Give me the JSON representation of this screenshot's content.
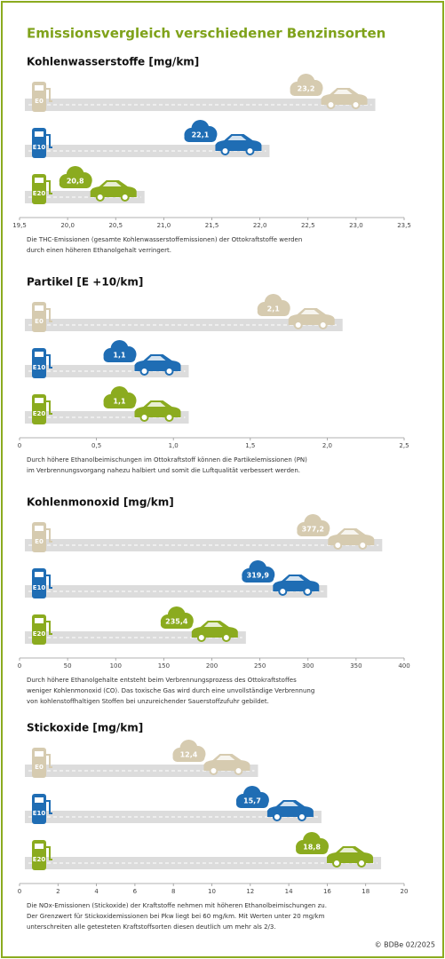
{
  "title": "Emissionsvergleich verschiedener Benzinsorten",
  "credit": "© BDBe 02/2025",
  "chart_data": [
    {
      "type": "bar",
      "title": "Kohlenwasserstoffe [mg/km]",
      "categories": [
        "E0",
        "E10",
        "E20"
      ],
      "values": [
        23.2,
        22.1,
        20.8
      ],
      "value_labels": [
        "23,2",
        "22,1",
        "20,8"
      ],
      "colors": [
        "#d6cbb0",
        "#1f6db4",
        "#8bab1f"
      ],
      "xlim": [
        19.5,
        23.5
      ],
      "xticks": [
        {
          "value": 19.5,
          "label": "19,5"
        },
        {
          "value": 20,
          "label": "20,0"
        },
        {
          "value": 20.5,
          "label": "20,5"
        },
        {
          "value": 21,
          "label": "21,0"
        },
        {
          "value": 21.5,
          "label": "21,5"
        },
        {
          "value": 22,
          "label": "22,0"
        },
        {
          "value": 22.5,
          "label": "22,5"
        },
        {
          "value": 23,
          "label": "23,0"
        },
        {
          "value": 23.5,
          "label": "23,5"
        }
      ],
      "caption": [
        "Die THC-Emissionen (gesamte Kohlenwasserstoffemissionen) der Ottokraftstoffe werden",
        "durch einen höheren Ethanolgehalt verringert."
      ]
    },
    {
      "type": "bar",
      "title": "Partikel [E +10/km]",
      "categories": [
        "E0",
        "E10",
        "E20"
      ],
      "values": [
        2.1,
        1.1,
        1.1
      ],
      "value_labels": [
        "2,1",
        "1,1",
        "1,1"
      ],
      "colors": [
        "#d6cbb0",
        "#1f6db4",
        "#8bab1f"
      ],
      "xlim": [
        0,
        2.5
      ],
      "xticks": [
        0,
        {
          "value": 0.5,
          "label": "0,5"
        },
        {
          "value": 1,
          "label": "1,0"
        },
        {
          "value": 1.5,
          "label": "1,5"
        },
        {
          "value": 2,
          "label": "2,0"
        },
        {
          "value": 2.5,
          "label": "2,5"
        }
      ],
      "caption": [
        "Durch höhere Ethanolbeimischungen im Ottokraftstoff können die Partikelemissionen (PN)",
        "im Verbrennungsvorgang nahezu halbiert und somit die Luftqualität verbessert werden."
      ]
    },
    {
      "type": "bar",
      "title": "Kohlenmonoxid [mg/km]",
      "categories": [
        "E0",
        "E10",
        "E20"
      ],
      "values": [
        377.2,
        319.9,
        235.4
      ],
      "value_labels": [
        "377,2",
        "319,9",
        "235,4"
      ],
      "colors": [
        "#d6cbb0",
        "#1f6db4",
        "#8bab1f"
      ],
      "xlim": [
        0,
        400
      ],
      "xticks": [
        0,
        50,
        100,
        150,
        200,
        250,
        300,
        350,
        400
      ],
      "caption": [
        "Durch höhere Ethanolgehalte entsteht beim Verbrennungsprozess des Ottokraftstoffes",
        "weniger Kohlenmonoxid (CO). Das toxische Gas wird durch eine unvollständige Verbrennung",
        "von kohlenstoffhaltigen Stoffen bei unzureichender Sauerstoffzufuhr gebildet."
      ]
    },
    {
      "type": "bar",
      "title": "Stickoxide [mg/km]",
      "categories": [
        "E0",
        "E10",
        "E20"
      ],
      "values": [
        12.4,
        15.7,
        18.8
      ],
      "value_labels": [
        "12,4",
        "15,7",
        "18,8"
      ],
      "colors": [
        "#d6cbb0",
        "#1f6db4",
        "#8bab1f"
      ],
      "xlim": [
        0,
        20
      ],
      "xticks": [
        0,
        2,
        4,
        6,
        8,
        10,
        12,
        14,
        16,
        18,
        20
      ],
      "caption": [
        "Die NOx-Emissionen (Stickoxide) der Kraftstoffe nehmen mit höheren Ethanolbeimischungen zu.",
        "Der Grenzwert für Stickoxidemissionen bei Pkw liegt bei 60 mg/km. Mit Werten unter 20 mg/km",
        "unterschreiten alle getesteten Kraftstoffsorten diesen deutlich um mehr als 2/3."
      ]
    }
  ]
}
